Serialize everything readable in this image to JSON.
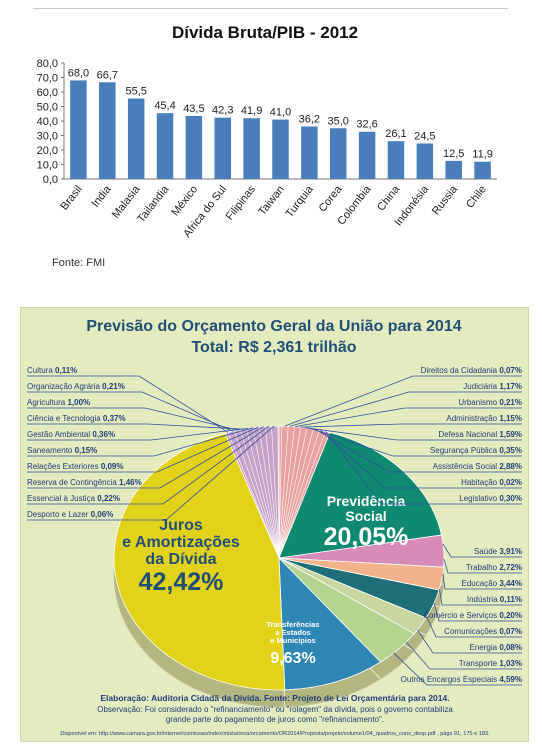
{
  "colors": {
    "bar": "#4a7ebb",
    "panel_bg": "#e4ecbf",
    "title_blue": "#1f4e79",
    "juros_yellow": "#e2d21a",
    "previdencia_teal": "#0f8a70",
    "transferencias_blue": "#2e86b5",
    "leader_blue": "#2f4f9f"
  },
  "chart_data": [
    {
      "type": "bar",
      "title": "Dívida Bruta/PIB - 2012",
      "categories": [
        "Brasil",
        "India",
        "Malasia",
        "Tailandia",
        "México",
        "Africa do Sul",
        "Filipinas",
        "Taiwan",
        "Turquia",
        "Corea",
        "Colombia",
        "China",
        "Indonésia",
        "Russia",
        "Chile"
      ],
      "values": [
        68.0,
        66.7,
        55.5,
        45.4,
        43.5,
        42.3,
        41.9,
        41.0,
        36.2,
        35.0,
        32.6,
        26.1,
        24.5,
        12.5,
        11.9
      ],
      "data_labels": [
        "68,0",
        "66,7",
        "55,5",
        "45,4",
        "43,5",
        "42,3",
        "41,9",
        "41,0",
        "36,2",
        "35,0",
        "32,6",
        "26,1",
        "24,5",
        "12,5",
        "11,9"
      ],
      "yticks": [
        "0,0",
        "10,0",
        "20,0",
        "30,0",
        "40,0",
        "50,0",
        "60,0",
        "70,0",
        "80,0"
      ],
      "ylim": [
        0,
        80
      ],
      "grid": false,
      "xlabel": "",
      "ylabel": ""
    },
    {
      "type": "pie",
      "title": "Previsão do Orçamento Geral da União para 2014",
      "subtitle": "Total: R$ 2,361 trilhão",
      "big_slices": [
        {
          "id": "juros",
          "label_lines": [
            "Juros",
            "e Amortizações",
            "da Dívida"
          ],
          "pct_text": "42,42%",
          "value": 42.42,
          "color": "#e2d21a"
        },
        {
          "id": "previdencia",
          "label_lines": [
            "Previdência",
            "Social"
          ],
          "pct_text": "20,05%",
          "value": 20.05,
          "color": "#0f8a70"
        },
        {
          "id": "transferencias",
          "label_lines": [
            "Transferências",
            "a Estados",
            "e Municípios"
          ],
          "pct_text": "9,63%",
          "value": 9.63,
          "color": "#2e86b5"
        }
      ],
      "left_labels": [
        {
          "name": "Cultura",
          "pct": "0,11%"
        },
        {
          "name": "Organização Agrária",
          "pct": "0,21%"
        },
        {
          "name": "Agricultura",
          "pct": "1,00%"
        },
        {
          "name": "Ciência e Tecnologia",
          "pct": "0,37%"
        },
        {
          "name": "Gestão Ambiental",
          "pct": "0,36%"
        },
        {
          "name": "Saneamento",
          "pct": "0,15%"
        },
        {
          "name": "Relações Exteriores",
          "pct": "0,09%"
        },
        {
          "name": "Reserva de Contingência",
          "pct": "1,46%"
        },
        {
          "name": "Essencial à Justiça",
          "pct": "0,22%"
        },
        {
          "name": "Desporto e Lazer",
          "pct": "0,06%"
        }
      ],
      "right_top_labels": [
        {
          "name": "Direitos da Cidadania",
          "pct": "0,07%"
        },
        {
          "name": "Judiciária",
          "pct": "1,17%"
        },
        {
          "name": "Urbanismo",
          "pct": "0,21%"
        },
        {
          "name": "Administração",
          "pct": "1,15%"
        },
        {
          "name": "Defesa Nacional",
          "pct": "1,59%"
        },
        {
          "name": "Segurança Pública",
          "pct": "0,35%"
        },
        {
          "name": "Assistência Social",
          "pct": "2,88%"
        },
        {
          "name": "Habitação",
          "pct": "0,02%"
        },
        {
          "name": "Legislativo",
          "pct": "0,30%"
        }
      ],
      "right_bottom_labels": [
        {
          "name": "Saúde",
          "pct": "3,91%"
        },
        {
          "name": "Trabalho",
          "pct": "2,72%"
        },
        {
          "name": "Educação",
          "pct": "3,44%"
        },
        {
          "name": "Indústria",
          "pct": "0,11%"
        },
        {
          "name": "Comércio e Serviços",
          "pct": "0,20%"
        },
        {
          "name": "Comunicações",
          "pct": "0,07%"
        },
        {
          "name": "Energia",
          "pct": "0,08%"
        },
        {
          "name": "Transporte",
          "pct": "1,03%"
        },
        {
          "name": "Outros Encargos Especiais",
          "pct": "4,59%"
        }
      ]
    }
  ],
  "source_note": "Fonte: FMI",
  "footer": {
    "line1": "Elaboração: Auditoria Cidadã da Dívida. Fonte: Projeto de Lei Orçamentária para 2014.",
    "line2": "Observação:  Foi considerado o \"refinanciamento\" ou \"rolagem\" da dívida, pois o governo contabiliza",
    "line3": "grande parte do pagamento de juros como \"refinanciamento\".",
    "line4": "Disponível em: http://www.camara.gov.br/internet/comissao/index/mista/orca/orcamento/OR2014/Proposta/projeto/volume1/04_quadros_cons_desp.pdf , págs 91, 175 e 183."
  }
}
